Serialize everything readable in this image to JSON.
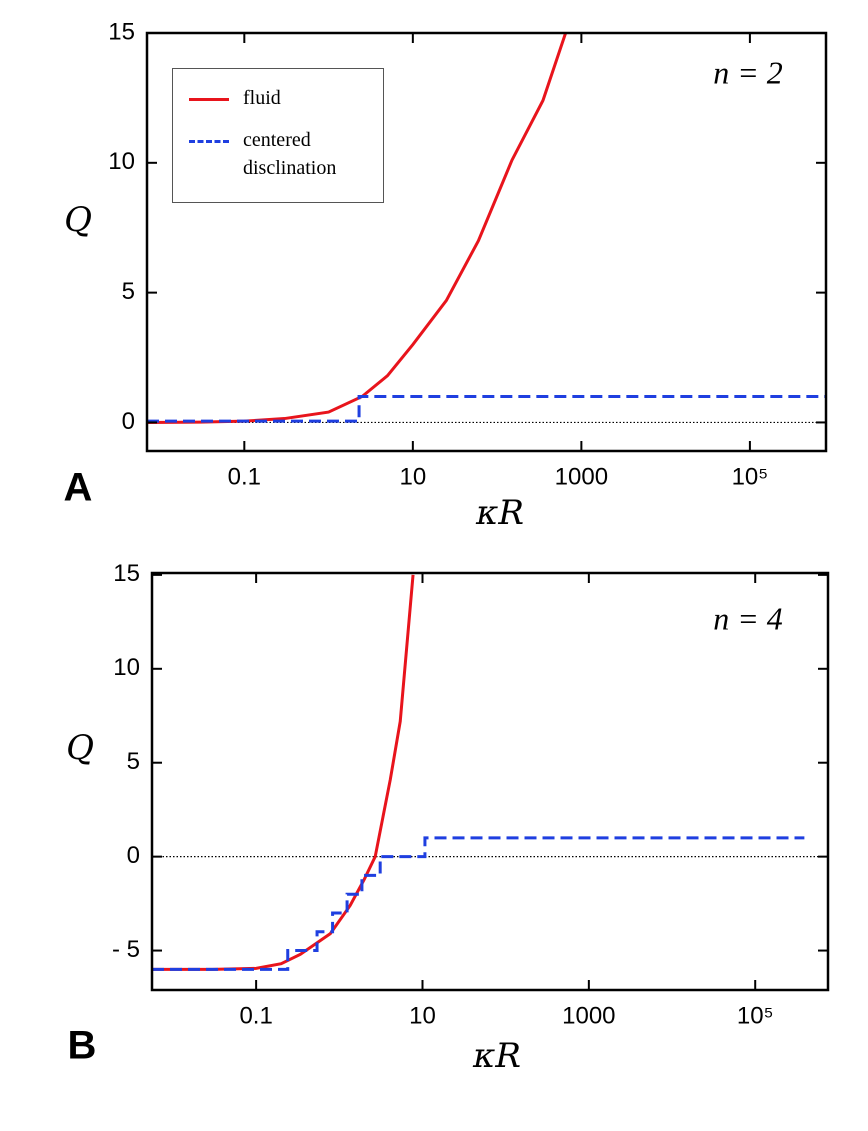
{
  "chart_data": [
    {
      "type": "line",
      "panel": "A",
      "annotation": "n = 2",
      "xlabel": "κR",
      "ylabel": "Q",
      "xscale": "log",
      "xlim": [
        0.007,
        800000
      ],
      "ylim": [
        -1.1,
        15
      ],
      "xticks": [
        0.1,
        10,
        1000,
        {
          "value": 100000,
          "label": "10⁵"
        }
      ],
      "yticks": [
        0,
        5,
        10,
        15
      ],
      "reference_line": 0,
      "legend": "upper left",
      "series": [
        {
          "name": "fluid",
          "color": "#e8141c",
          "dash": false,
          "x": [
            0.007,
            0.03,
            0.1,
            0.3,
            1,
            2.5,
            5,
            10,
            25,
            60,
            150,
            350,
            650
          ],
          "values": [
            0,
            0.01,
            0.05,
            0.15,
            0.4,
            1.0,
            1.8,
            3.0,
            4.7,
            7.0,
            10.1,
            12.4,
            15
          ]
        },
        {
          "name": "centered disclination",
          "color": "#1f3fe0",
          "dash": true,
          "x": [
            0.007,
            2.3,
            2.3,
            800000
          ],
          "values": [
            0.05,
            0.05,
            1,
            1
          ]
        }
      ]
    },
    {
      "type": "line",
      "panel": "B",
      "annotation": "n = 4",
      "xlabel": "κR",
      "ylabel": "Q",
      "xscale": "log",
      "xlim": [
        0.0056,
        750000
      ],
      "ylim": [
        -7.1,
        15.1
      ],
      "xticks": [
        0.1,
        10,
        1000,
        {
          "value": 100000,
          "label": "10⁵"
        }
      ],
      "yticks": [
        {
          "value": -5,
          "label": "- 5"
        },
        0,
        5,
        10,
        15
      ],
      "reference_line": 0,
      "series": [
        {
          "color": "#e8141c",
          "dash": false,
          "x": [
            0.0056,
            0.03,
            0.1,
            0.2,
            0.34,
            0.78,
            1.35,
            2.0,
            2.7,
            4.1,
            5.4,
            7.7
          ],
          "values": [
            -6,
            -6,
            -5.95,
            -5.7,
            -5.2,
            -4.1,
            -2.6,
            -1.2,
            0,
            4.1,
            7.2,
            15
          ]
        },
        {
          "color": "#1f3fe0",
          "dash": true,
          "x": [
            0.0056,
            0.24,
            0.24,
            0.54,
            0.54,
            0.83,
            0.83,
            1.24,
            1.24,
            1.87,
            1.87,
            3.1,
            3.1,
            10.7,
            10.7,
            390000
          ],
          "values": [
            -6,
            -6,
            -5,
            -5,
            -4,
            -4,
            -3,
            -3,
            -2,
            -2,
            -1,
            -1,
            0,
            0,
            1,
            1
          ]
        }
      ]
    }
  ]
}
